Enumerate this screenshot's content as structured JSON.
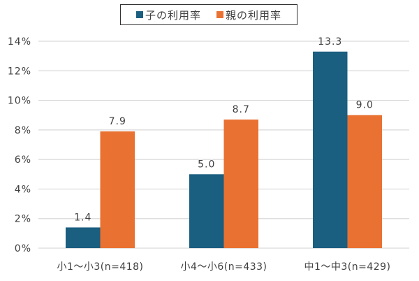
{
  "chart_data": {
    "type": "bar",
    "categories": [
      "小1～小3(n=418)",
      "小4～小6(n=433)",
      "中1～中3(n=429)"
    ],
    "series": [
      {
        "name": "子の利用率",
        "values": [
          1.4,
          5.0,
          13.3
        ],
        "color": "#1a5e80",
        "labels": [
          "1.4",
          "5.0",
          "13.3"
        ]
      },
      {
        "name": "親の利用率",
        "values": [
          7.9,
          8.7,
          9.0
        ],
        "color": "#e97132",
        "labels": [
          "7.9",
          "8.7",
          "9.0"
        ]
      }
    ],
    "ylim": [
      0,
      14
    ],
    "yticks": [
      "0%",
      "2%",
      "4%",
      "6%",
      "8%",
      "10%",
      "12%",
      "14%"
    ],
    "grid": true,
    "legend": "top-center",
    "xlabel": "",
    "ylabel": "",
    "title": ""
  }
}
